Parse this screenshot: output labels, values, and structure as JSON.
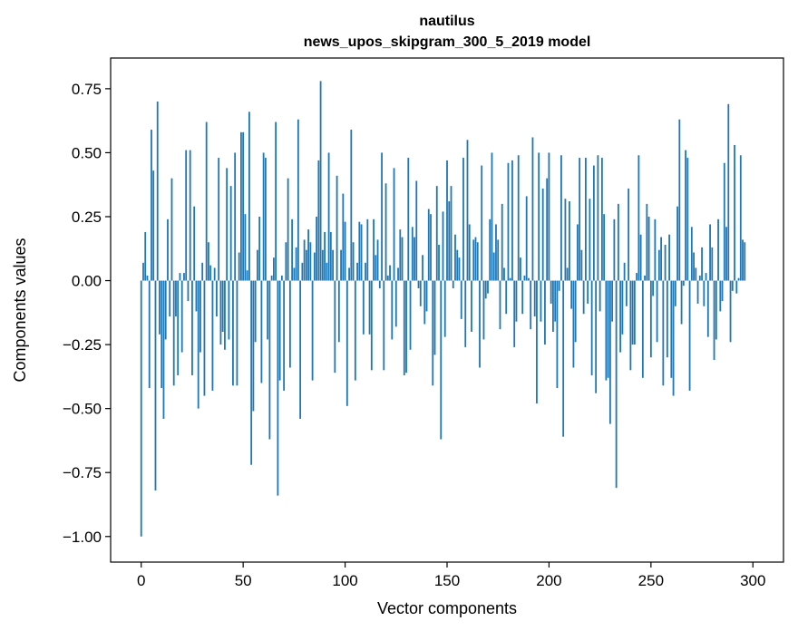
{
  "chart_data": {
    "type": "bar",
    "title": "nautilus",
    "subtitle": "news_upos_skipgram_300_5_2019 model",
    "xlabel": "Vector components",
    "ylabel": "Components values",
    "xlim": [
      -15,
      315
    ],
    "ylim": [
      -1.1,
      0.87
    ],
    "xticks": [
      0,
      50,
      100,
      150,
      200,
      250,
      300
    ],
    "yticks": [
      -1.0,
      -0.75,
      -0.5,
      -0.25,
      0.0,
      0.25,
      0.5,
      0.75
    ],
    "ytick_labels": [
      "−1.00",
      "−0.75",
      "−0.50",
      "−0.25",
      "0.00",
      "0.25",
      "0.50",
      "0.75"
    ],
    "xtick_labels": [
      "0",
      "50",
      "100",
      "150",
      "200",
      "250",
      "300"
    ],
    "grid": false,
    "bar_color": "#1f77b4",
    "values": [
      -1.0,
      0.07,
      0.19,
      0.02,
      -0.42,
      0.59,
      0.43,
      -0.82,
      0.7,
      -0.21,
      -0.42,
      -0.54,
      -0.23,
      0.24,
      -0.14,
      0.4,
      -0.41,
      -0.14,
      -0.37,
      0.03,
      -0.28,
      0.03,
      0.51,
      -0.08,
      0.51,
      -0.37,
      0.29,
      -0.12,
      -0.5,
      -0.28,
      0.07,
      -0.45,
      0.62,
      0.15,
      0.06,
      -0.43,
      0.05,
      -0.14,
      0.48,
      -0.25,
      -0.2,
      -0.27,
      0.44,
      -0.23,
      0.37,
      -0.41,
      0.5,
      -0.41,
      0.11,
      0.58,
      0.58,
      0.26,
      0.04,
      0.66,
      -0.72,
      -0.51,
      -0.24,
      0.12,
      0.25,
      -0.4,
      0.5,
      0.48,
      -0.23,
      -0.62,
      0.02,
      0.09,
      0.62,
      -0.84,
      -0.39,
      0.02,
      -0.43,
      0.15,
      0.4,
      -0.34,
      0.24,
      0.05,
      0.13,
      0.63,
      -0.54,
      0.07,
      0.16,
      0.12,
      0.2,
      0.15,
      -0.39,
      0.11,
      0.25,
      0.47,
      0.78,
      0.12,
      0.19,
      0.07,
      0.5,
      0.19,
      0.12,
      -0.36,
      0.41,
      -0.24,
      0.12,
      0.34,
      0.23,
      -0.49,
      0.05,
      0.59,
      0.15,
      -0.39,
      0.07,
      0.23,
      0.22,
      -0.21,
      0.07,
      0.24,
      -0.21,
      -0.35,
      0.24,
      0.1,
      0.16,
      -0.03,
      0.5,
      -0.35,
      0.38,
      0.02,
      0.06,
      -0.23,
      0.44,
      -0.18,
      0.05,
      0.2,
      0.17,
      -0.37,
      -0.36,
      0.48,
      -0.27,
      0.21,
      0.17,
      0.39,
      -0.03,
      -0.1,
      0.1,
      -0.17,
      -0.12,
      0.28,
      0.26,
      -0.41,
      -0.29,
      0.37,
      0.14,
      -0.62,
      0.27,
      -0.22,
      0.47,
      0.31,
      0.37,
      -0.03,
      0.18,
      0.12,
      0.09,
      -0.15,
      0.48,
      -0.26,
      0.55,
      0.22,
      -0.2,
      0.16,
      0.17,
      0.15,
      -0.34,
      0.45,
      -0.23,
      -0.07,
      -0.05,
      0.24,
      0.5,
      0.11,
      0.22,
      0.16,
      -0.19,
      0.3,
      0.05,
      -0.13,
      0.46,
      0.01,
      0.47,
      -0.26,
      -0.16,
      0.49,
      0.09,
      -0.13,
      0.02,
      0.33,
      0.01,
      -0.19,
      0.56,
      -0.14,
      -0.48,
      0.5,
      -0.16,
      0.36,
      -0.25,
      0.4,
      0.5,
      -0.09,
      -0.2,
      -0.16,
      -0.42,
      -0.04,
      0.49,
      -0.61,
      0.32,
      0.05,
      0.31,
      -0.11,
      -0.34,
      -0.24,
      0.22,
      0.48,
      0.12,
      -0.13,
      0.48,
      -0.09,
      0.32,
      -0.37,
      0.45,
      -0.44,
      0.49,
      -0.12,
      0.48,
      0.26,
      -0.39,
      -0.38,
      -0.56,
      -0.16,
      0.24,
      -0.81,
      0.3,
      -0.28,
      -0.21,
      0.07,
      -0.1,
      0.36,
      -0.35,
      -0.25,
      -0.25,
      0.03,
      0.49,
      0.18,
      -0.38,
      0.02,
      0.3,
      0.25,
      -0.3,
      -0.06,
      0.24,
      -0.24,
      0.12,
      0.17,
      -0.41,
      0.14,
      -0.3,
      0.18,
      -0.38,
      -0.45,
      -0.1,
      0.29,
      0.63,
      -0.17,
      -0.02,
      0.51,
      0.48,
      -0.43,
      0.21,
      0.11,
      0.05,
      -0.09,
      0.02,
      0.13,
      -0.1,
      0.03,
      -0.22,
      0.22,
      0.13,
      -0.31,
      -0.23,
      0.24,
      -0.12,
      -0.08,
      0.46,
      0.21,
      0.69,
      -0.24,
      -0.04,
      0.53,
      -0.05,
      0.01,
      0.49,
      0.16,
      0.15
    ]
  }
}
